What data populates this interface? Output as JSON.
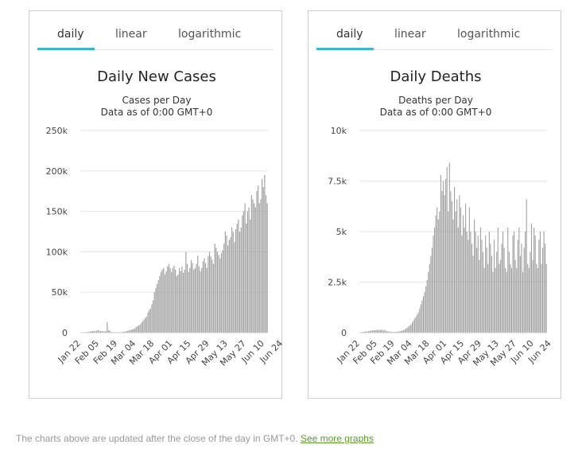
{
  "tabs": {
    "daily": "daily",
    "linear": "linear",
    "logarithmic": "logarithmic"
  },
  "footer": {
    "text": "The charts above are updated after the close of the day in GMT+0.",
    "link": "See more graphs"
  },
  "colors": {
    "bar": "#a0a0a0",
    "grid": "#e6e6e6",
    "tab_active": "#3ab5d6",
    "link": "#5a9b2a"
  },
  "chart_data": [
    {
      "type": "bar",
      "title": "Daily New Cases",
      "subtitle_lines": [
        "Cases per Day",
        "Data as of 0:00 GMT+0"
      ],
      "ylim": [
        0,
        250000
      ],
      "yticks": [
        0,
        50000,
        100000,
        150000,
        200000,
        250000
      ],
      "ytick_labels": [
        "0",
        "50k",
        "100k",
        "150k",
        "200k",
        "250k"
      ],
      "xtick_labels": [
        "Jan 22",
        "Feb 05",
        "Feb 19",
        "Mar 04",
        "Mar 18",
        "Apr 01",
        "Apr 15",
        "Apr 29",
        "May 13",
        "May 27",
        "Jun 10",
        "Jun 24"
      ],
      "xtick_indices": [
        0,
        14,
        28,
        42,
        56,
        70,
        84,
        98,
        112,
        126,
        140,
        154
      ],
      "start_label": "Jan 22",
      "values": [
        0,
        200,
        100,
        300,
        500,
        800,
        1000,
        1500,
        1800,
        2000,
        2200,
        1800,
        2500,
        3000,
        2500,
        2000,
        1800,
        2000,
        1500,
        2000,
        13000,
        3000,
        2500,
        1000,
        700,
        600,
        700,
        500,
        400,
        600,
        500,
        700,
        1000,
        1200,
        1500,
        2000,
        2500,
        3000,
        3500,
        4000,
        4500,
        5000,
        7000,
        8000,
        9000,
        10000,
        12000,
        14000,
        16000,
        18000,
        20000,
        25000,
        28000,
        30000,
        35000,
        40000,
        50000,
        55000,
        60000,
        65000,
        70000,
        75000,
        78000,
        80000,
        72000,
        76000,
        82000,
        85000,
        80000,
        75000,
        80000,
        83000,
        78000,
        70000,
        72000,
        80000,
        76000,
        82000,
        74000,
        78000,
        100000,
        85000,
        75000,
        80000,
        90000,
        86000,
        78000,
        80000,
        85000,
        95000,
        82000,
        76000,
        80000,
        88000,
        92000,
        86000,
        80000,
        95000,
        100000,
        94000,
        90000,
        85000,
        110000,
        105000,
        100000,
        96000,
        92000,
        98000,
        102000,
        110000,
        125000,
        120000,
        108000,
        115000,
        118000,
        130000,
        125000,
        112000,
        128000,
        135000,
        140000,
        125000,
        130000,
        145000,
        150000,
        160000,
        135000,
        150000,
        155000,
        140000,
        170000,
        165000,
        160000,
        155000,
        175000,
        182000,
        160000,
        165000,
        190000,
        180000,
        195000,
        170000,
        160000
      ]
    },
    {
      "type": "bar",
      "title": "Daily Deaths",
      "subtitle_lines": [
        "Deaths per Day",
        "Data as of 0:00 GMT+0"
      ],
      "ylim": [
        0,
        10000
      ],
      "yticks": [
        0,
        2500,
        5000,
        7500,
        10000
      ],
      "ytick_labels": [
        "0",
        "2.5k",
        "5k",
        "7.5k",
        "10k"
      ],
      "xtick_labels": [
        "Jan 22",
        "Feb 05",
        "Feb 19",
        "Mar 04",
        "Mar 18",
        "Apr 01",
        "Apr 15",
        "Apr 29",
        "May 13",
        "May 27",
        "Jun 10",
        "Jun 24"
      ],
      "xtick_indices": [
        0,
        14,
        28,
        42,
        56,
        70,
        84,
        98,
        112,
        126,
        140,
        154
      ],
      "start_label": "Jan 22",
      "values": [
        10,
        20,
        30,
        40,
        50,
        60,
        60,
        80,
        90,
        100,
        110,
        120,
        110,
        130,
        140,
        120,
        130,
        150,
        140,
        100,
        150,
        80,
        70,
        60,
        50,
        50,
        40,
        40,
        30,
        40,
        50,
        60,
        70,
        80,
        100,
        120,
        150,
        200,
        250,
        300,
        350,
        400,
        500,
        600,
        700,
        800,
        900,
        1000,
        1200,
        1400,
        1600,
        1800,
        2000,
        2300,
        2600,
        3000,
        3400,
        3800,
        4200,
        4800,
        5200,
        5800,
        6200,
        5600,
        6000,
        7800,
        7000,
        7500,
        6800,
        7600,
        8200,
        6000,
        8400,
        7000,
        6500,
        5600,
        7200,
        6000,
        6600,
        5200,
        6800,
        6200,
        4800,
        5800,
        5200,
        6400,
        5000,
        4600,
        6200,
        5000,
        4400,
        3800,
        5600,
        5000,
        4200,
        4800,
        3600,
        5200,
        4600,
        4000,
        3200,
        4800,
        4200,
        3400,
        5000,
        4400,
        3800,
        3000,
        4600,
        3200,
        4000,
        5200,
        3400,
        3600,
        4400,
        5000,
        4200,
        3200,
        3000,
        5200,
        4000,
        3400,
        3200,
        4800,
        5000,
        3600,
        3200,
        4600,
        5200,
        3800,
        4400,
        3000,
        4200,
        5000,
        6600,
        3400,
        3200,
        4000,
        5400,
        3600,
        5200,
        4800,
        3400,
        3200,
        4600,
        5000,
        3400,
        4200,
        5000,
        4400,
        3400
      ]
    }
  ]
}
